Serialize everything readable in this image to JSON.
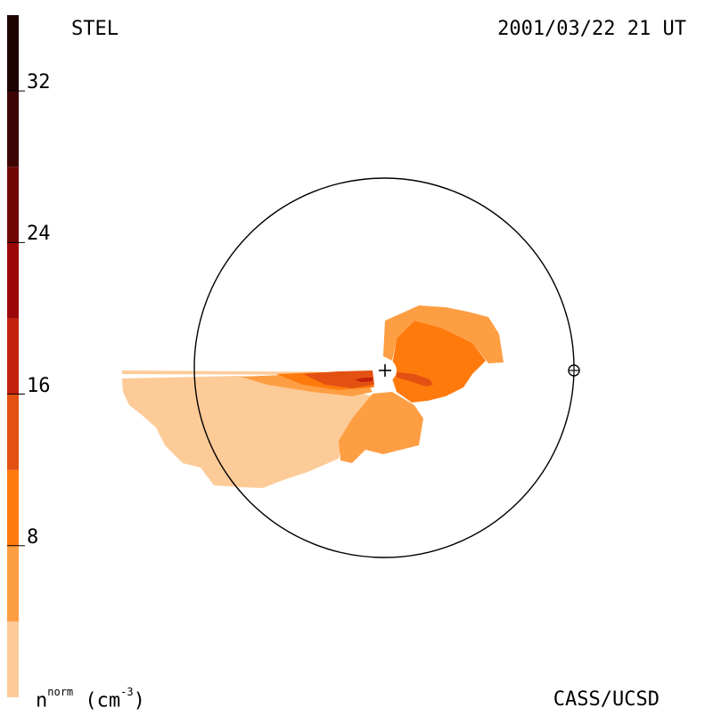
{
  "header": {
    "source": "STEL",
    "timestamp": "2001/03/22 21 UT"
  },
  "footer": {
    "credit": "CASS/UCSD",
    "unit_base": "n",
    "unit_sup": "norm",
    "unit_paren": "(cm",
    "unit_exp": "-3",
    "unit_close": ")"
  },
  "colorbar": {
    "ticks": [
      "8",
      "16",
      "24",
      "32"
    ],
    "tick_values": [
      8,
      16,
      24,
      32
    ],
    "range": [
      0,
      36
    ],
    "bands": [
      {
        "min": 0,
        "max": 4,
        "color": "#fdcb98"
      },
      {
        "min": 4,
        "max": 8,
        "color": "#fe9e43"
      },
      {
        "min": 8,
        "max": 12,
        "color": "#ff7a0c"
      },
      {
        "min": 12,
        "max": 16,
        "color": "#e35112"
      },
      {
        "min": 16,
        "max": 20,
        "color": "#c4200f"
      },
      {
        "min": 20,
        "max": 24,
        "color": "#9c0808"
      },
      {
        "min": 24,
        "max": 28,
        "color": "#700606"
      },
      {
        "min": 28,
        "max": 32,
        "color": "#3e0505"
      },
      {
        "min": 32,
        "max": 36,
        "color": "#1f0202"
      }
    ]
  },
  "chart_data": {
    "type": "heatmap",
    "title": "STEL",
    "subtitle": "2001/03/22 21 UT",
    "colorbar_label": "n^norm (cm^-3)",
    "colorbar_ticks": [
      8,
      16,
      24,
      32
    ],
    "markers": [
      "sun-center-plus",
      "earth-symbol"
    ],
    "outer_circle": "earth-orbit"
  }
}
